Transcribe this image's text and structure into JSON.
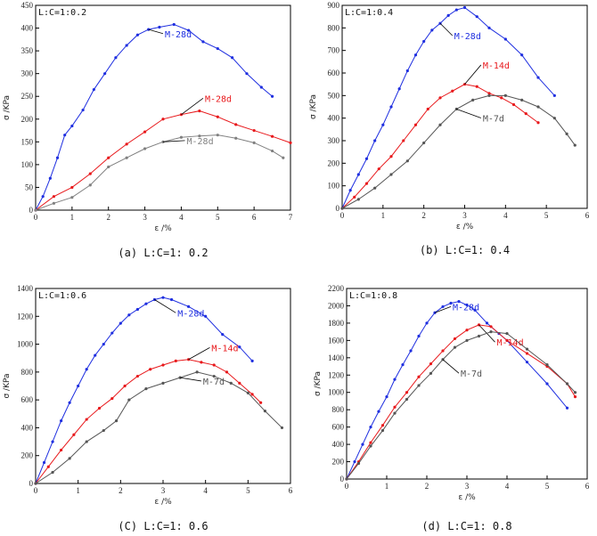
{
  "chart_data": [
    {
      "type": "line",
      "inset_label": "L:C=1:0.2",
      "caption": "(a) L:C=1: 0.2",
      "xlabel": "ε /%",
      "ylabel": "σ /KPa",
      "xlim": [
        0,
        7
      ],
      "ylim": [
        0,
        450
      ],
      "xticks": [
        0,
        1,
        2,
        3,
        4,
        5,
        6,
        7
      ],
      "yticks": [
        0,
        50,
        100,
        150,
        200,
        250,
        300,
        350,
        400,
        450
      ],
      "series": [
        {
          "name": "M-28d",
          "color": "#1f2fe0",
          "label_at": [
            3.5,
            380
          ],
          "x": [
            0,
            0.2,
            0.4,
            0.6,
            0.8,
            1.0,
            1.3,
            1.6,
            1.9,
            2.2,
            2.5,
            2.8,
            3.1,
            3.4,
            3.8,
            4.2,
            4.6,
            5.0,
            5.4,
            5.8,
            6.2,
            6.5
          ],
          "y": [
            0,
            30,
            70,
            115,
            165,
            185,
            220,
            265,
            300,
            335,
            362,
            385,
            397,
            402,
            408,
            395,
            370,
            355,
            335,
            300,
            270,
            250
          ]
        },
        {
          "name": "M-28d",
          "color": "#e8191c",
          "label_at": [
            4.6,
            238
          ],
          "x": [
            0,
            0.5,
            1.0,
            1.5,
            2.0,
            2.5,
            3.0,
            3.5,
            4.0,
            4.5,
            5.0,
            5.5,
            6.0,
            6.5,
            7.0
          ],
          "y": [
            0,
            30,
            50,
            80,
            115,
            145,
            172,
            200,
            210,
            218,
            205,
            188,
            175,
            162,
            148
          ]
        },
        {
          "name": "M-28d",
          "color": "#808080",
          "label_at": [
            4.1,
            145
          ],
          "x": [
            0,
            0.5,
            1.0,
            1.5,
            2.0,
            2.5,
            3.0,
            3.5,
            4.0,
            4.5,
            5.0,
            5.5,
            6.0,
            6.5,
            6.8
          ],
          "y": [
            0,
            15,
            28,
            55,
            95,
            115,
            135,
            150,
            160,
            163,
            165,
            158,
            148,
            130,
            115
          ]
        }
      ]
    },
    {
      "type": "line",
      "inset_label": "L:C=1:0.4",
      "caption": "(b) L:C=1: 0.4",
      "xlabel": "ε /%",
      "ylabel": "σ /KPa",
      "xlim": [
        0,
        6
      ],
      "ylim": [
        0,
        900
      ],
      "xticks": [
        0,
        1,
        2,
        3,
        4,
        5,
        6
      ],
      "yticks": [
        0,
        100,
        200,
        300,
        400,
        500,
        600,
        700,
        800,
        900
      ],
      "series": [
        {
          "name": "M-28d",
          "color": "#1f2fe0",
          "label_at": [
            2.7,
            750
          ],
          "x": [
            0,
            0.2,
            0.4,
            0.6,
            0.8,
            1.0,
            1.2,
            1.4,
            1.6,
            1.8,
            2.0,
            2.2,
            2.4,
            2.6,
            2.8,
            3.0,
            3.3,
            3.6,
            4.0,
            4.4,
            4.8,
            5.2
          ],
          "y": [
            0,
            80,
            150,
            220,
            300,
            370,
            450,
            530,
            610,
            680,
            740,
            790,
            820,
            855,
            880,
            890,
            850,
            800,
            750,
            680,
            580,
            500
          ]
        },
        {
          "name": "M-14d",
          "color": "#e8191c",
          "label_at": [
            3.4,
            620
          ],
          "x": [
            0,
            0.3,
            0.6,
            0.9,
            1.2,
            1.5,
            1.8,
            2.1,
            2.4,
            2.7,
            3.0,
            3.3,
            3.6,
            3.9,
            4.2,
            4.5,
            4.8
          ],
          "y": [
            0,
            50,
            110,
            175,
            230,
            300,
            370,
            440,
            490,
            520,
            550,
            540,
            510,
            490,
            460,
            420,
            380
          ]
        },
        {
          "name": "M-7d",
          "color": "#555555",
          "label_at": [
            3.4,
            385
          ],
          "x": [
            0,
            0.4,
            0.8,
            1.2,
            1.6,
            2.0,
            2.4,
            2.8,
            3.2,
            3.6,
            4.0,
            4.4,
            4.8,
            5.2,
            5.5,
            5.7
          ],
          "y": [
            0,
            40,
            90,
            150,
            210,
            290,
            370,
            440,
            480,
            500,
            500,
            480,
            450,
            400,
            330,
            280
          ]
        }
      ]
    },
    {
      "type": "line",
      "inset_label": "L:C=1:0.6",
      "caption": "(C) L:C=1: 0.6",
      "xlabel": "ε /%",
      "ylabel": "σ /KPa",
      "xlim": [
        0,
        6
      ],
      "ylim": [
        0,
        1400
      ],
      "xticks": [
        0,
        1,
        2,
        3,
        4,
        5,
        6
      ],
      "yticks": [
        0,
        200,
        400,
        600,
        800,
        1000,
        1200,
        1400
      ],
      "series": [
        {
          "name": "M-28d",
          "color": "#1f2fe0",
          "label_at": [
            3.3,
            1200
          ],
          "x": [
            0,
            0.2,
            0.4,
            0.6,
            0.8,
            1.0,
            1.2,
            1.4,
            1.6,
            1.8,
            2.0,
            2.2,
            2.4,
            2.6,
            2.8,
            3.0,
            3.2,
            3.6,
            4.0,
            4.4,
            4.8,
            5.1
          ],
          "y": [
            0,
            150,
            300,
            450,
            580,
            700,
            820,
            920,
            1000,
            1080,
            1150,
            1210,
            1250,
            1290,
            1320,
            1335,
            1320,
            1270,
            1200,
            1070,
            980,
            880
          ]
        },
        {
          "name": "M-14d",
          "color": "#e8191c",
          "label_at": [
            4.1,
            950
          ],
          "x": [
            0,
            0.3,
            0.6,
            0.9,
            1.2,
            1.5,
            1.8,
            2.1,
            2.4,
            2.7,
            3.0,
            3.3,
            3.6,
            3.9,
            4.2,
            4.5,
            4.8,
            5.1,
            5.3
          ],
          "y": [
            0,
            120,
            240,
            350,
            460,
            540,
            610,
            700,
            770,
            820,
            850,
            880,
            890,
            870,
            850,
            800,
            720,
            640,
            580
          ]
        },
        {
          "name": "M-7d",
          "color": "#555555",
          "label_at": [
            3.9,
            710
          ],
          "x": [
            0,
            0.4,
            0.8,
            1.2,
            1.6,
            1.9,
            2.2,
            2.6,
            3.0,
            3.4,
            3.8,
            4.2,
            4.6,
            5.0,
            5.4,
            5.8
          ],
          "y": [
            0,
            80,
            180,
            300,
            380,
            450,
            600,
            680,
            720,
            760,
            800,
            770,
            720,
            650,
            520,
            400
          ]
        }
      ]
    },
    {
      "type": "line",
      "inset_label": "L:C=1:0.8",
      "caption": "(d) L:C=1: 0.8",
      "xlabel": "ε /%",
      "ylabel": "σ /KPa",
      "xlim": [
        0,
        6
      ],
      "ylim": [
        0,
        2200
      ],
      "xticks": [
        0,
        1,
        2,
        3,
        4,
        5,
        6
      ],
      "yticks": [
        0,
        200,
        400,
        600,
        800,
        1000,
        1200,
        1400,
        1600,
        1800,
        2000,
        2200
      ],
      "series": [
        {
          "name": "M-28d",
          "color": "#1f2fe0",
          "label_at": [
            2.6,
            1950
          ],
          "x": [
            0,
            0.2,
            0.4,
            0.6,
            0.8,
            1.0,
            1.2,
            1.4,
            1.6,
            1.8,
            2.0,
            2.2,
            2.4,
            2.6,
            2.8,
            3.0,
            3.2,
            3.5,
            3.8,
            4.0,
            4.5,
            5.0,
            5.5
          ],
          "y": [
            0,
            200,
            400,
            600,
            780,
            950,
            1150,
            1320,
            1480,
            1650,
            1800,
            1920,
            1990,
            2030,
            2050,
            2010,
            1950,
            1800,
            1680,
            1600,
            1350,
            1100,
            820
          ]
        },
        {
          "name": "M-14d",
          "color": "#e8191c",
          "label_at": [
            3.7,
            1540
          ],
          "x": [
            0,
            0.3,
            0.6,
            0.9,
            1.2,
            1.5,
            1.8,
            2.1,
            2.4,
            2.7,
            3.0,
            3.3,
            3.6,
            4.0,
            4.5,
            5.0,
            5.5,
            5.7
          ],
          "y": [
            0,
            200,
            420,
            620,
            830,
            1000,
            1180,
            1330,
            1480,
            1620,
            1720,
            1780,
            1760,
            1600,
            1450,
            1300,
            1100,
            950
          ]
        },
        {
          "name": "M-7d",
          "color": "#555555",
          "label_at": [
            2.8,
            1180
          ],
          "x": [
            0,
            0.3,
            0.6,
            0.9,
            1.2,
            1.5,
            1.8,
            2.1,
            2.4,
            2.7,
            3.0,
            3.3,
            3.6,
            4.0,
            4.5,
            5.0,
            5.5,
            5.7
          ],
          "y": [
            0,
            180,
            380,
            560,
            760,
            920,
            1080,
            1220,
            1380,
            1520,
            1600,
            1650,
            1700,
            1680,
            1500,
            1320,
            1100,
            1000
          ]
        }
      ]
    }
  ]
}
